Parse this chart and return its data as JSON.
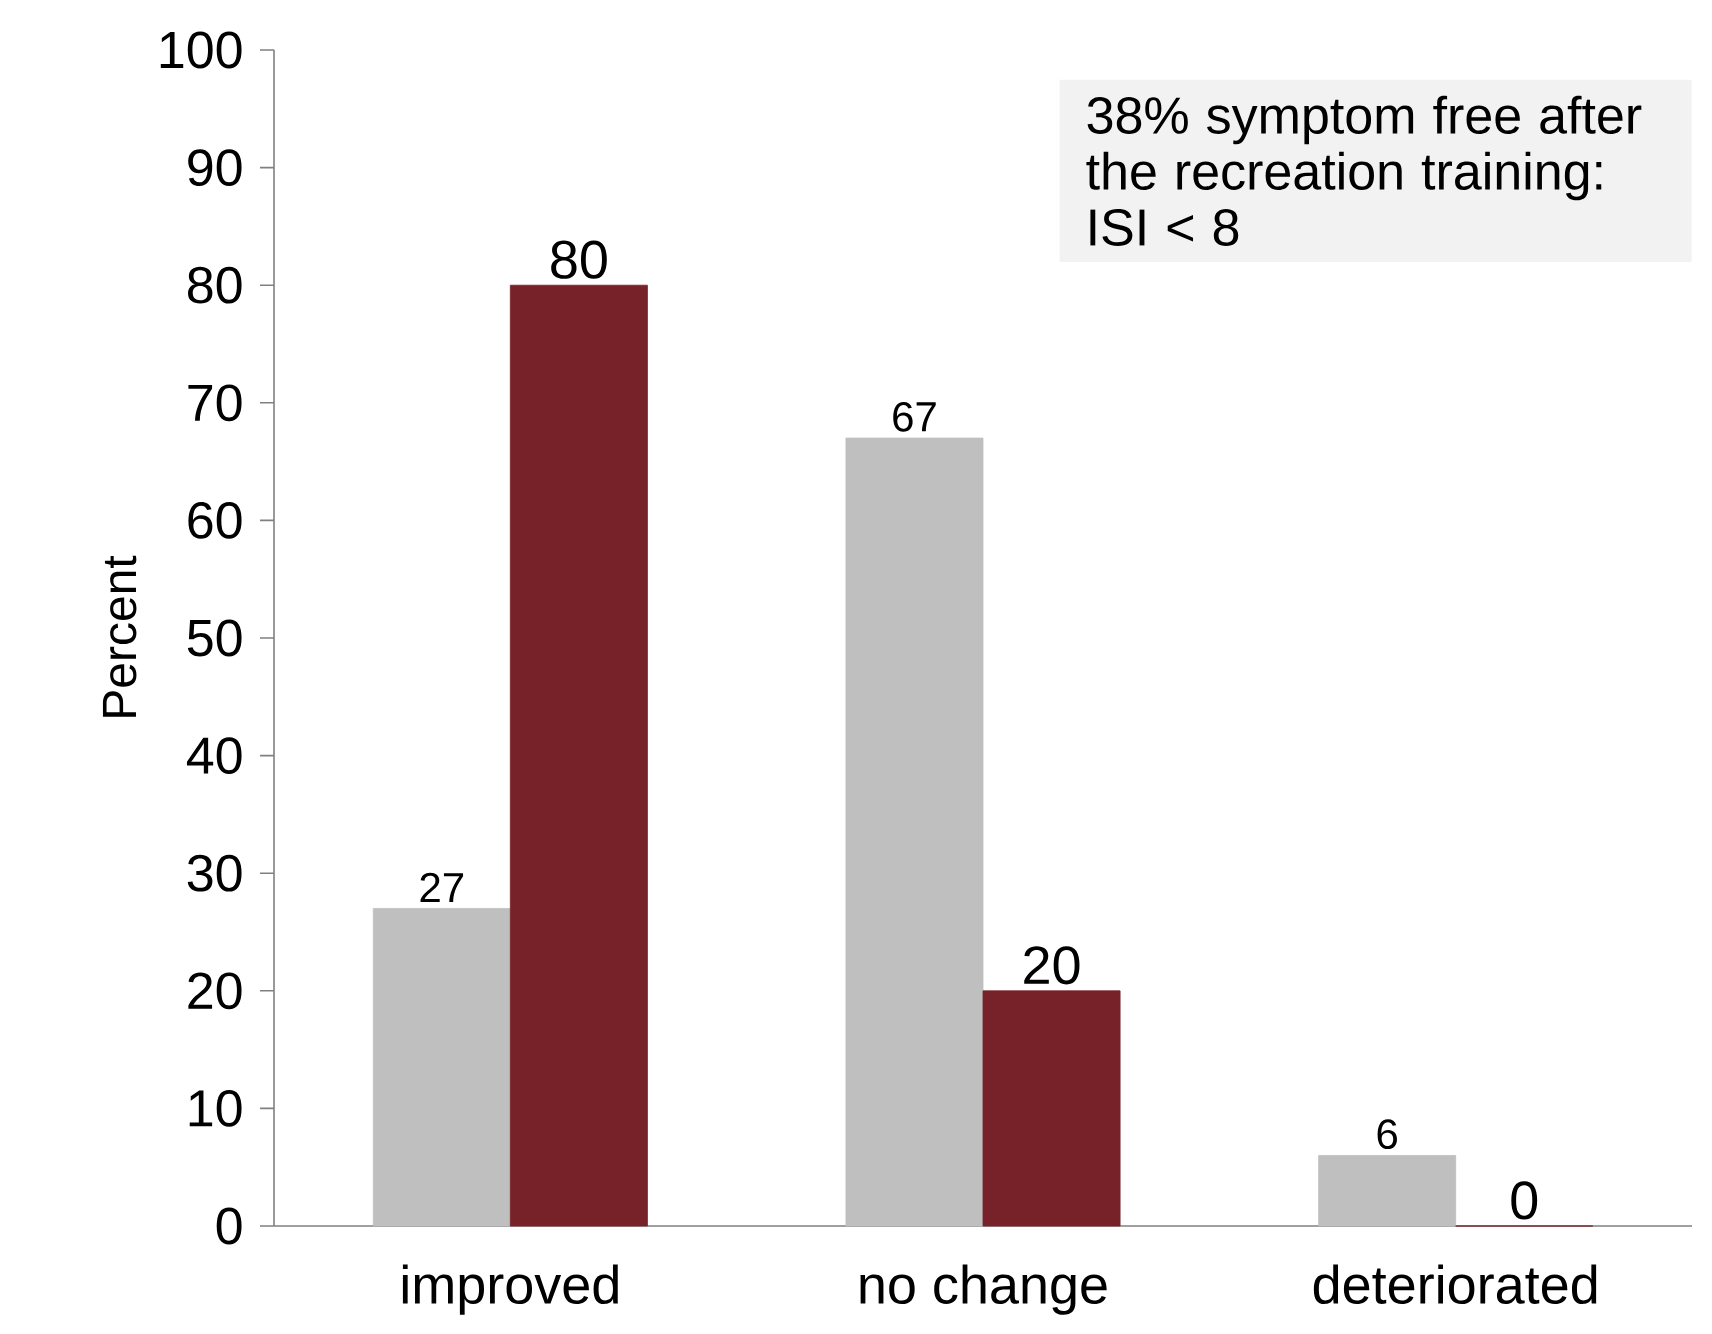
{
  "chart_data": {
    "type": "bar",
    "categories": [
      "improved",
      "no change",
      "deteriorated"
    ],
    "series": [
      {
        "color": "#bfbfbf",
        "values": [
          27,
          67,
          6
        ]
      },
      {
        "color": "#772228",
        "values": [
          80,
          20,
          0
        ]
      }
    ],
    "ylabel": "Percent",
    "ylim": [
      0,
      100
    ],
    "yticks": [
      0,
      10,
      20,
      30,
      40,
      50,
      60,
      70,
      80,
      90,
      100
    ],
    "data_labels": true,
    "annotations": [
      "38%  symptom free after the recreation training: ISI < 8"
    ]
  }
}
